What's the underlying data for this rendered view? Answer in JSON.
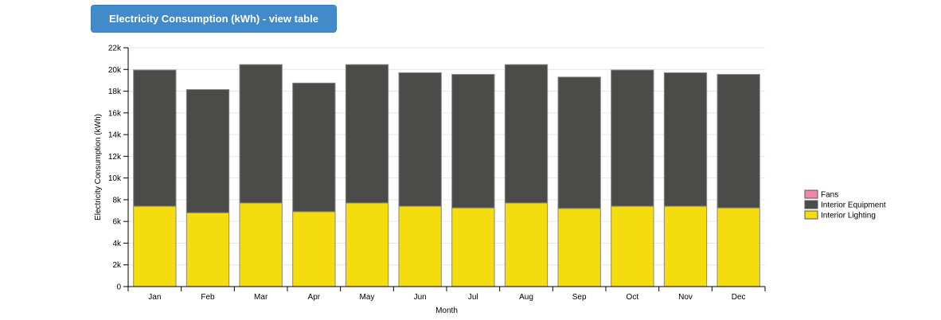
{
  "header": {
    "button_label": "Electricity Consumption (kWh) - view table"
  },
  "chart_data": {
    "type": "bar",
    "stacked": true,
    "title": "",
    "xlabel": "Month",
    "ylabel": "Electricity Consumption (kWh)",
    "ylim": [
      0,
      22000
    ],
    "yticks": [
      0,
      2000,
      4000,
      6000,
      8000,
      10000,
      12000,
      14000,
      16000,
      18000,
      20000,
      22000
    ],
    "ytick_labels": [
      "0",
      "2k",
      "4k",
      "6k",
      "8k",
      "10k",
      "12k",
      "14k",
      "16k",
      "18k",
      "20k",
      "22k"
    ],
    "grid": true,
    "legend_position": "right",
    "categories": [
      "Jan",
      "Feb",
      "Mar",
      "Apr",
      "May",
      "Jun",
      "Jul",
      "Aug",
      "Sep",
      "Oct",
      "Nov",
      "Dec"
    ],
    "series": [
      {
        "name": "Interior Lighting",
        "color": "#f5dc0f",
        "values": [
          7400,
          6800,
          7700,
          6900,
          7700,
          7400,
          7250,
          7700,
          7200,
          7400,
          7400,
          7250
        ]
      },
      {
        "name": "Interior Equipment",
        "color": "#4b4b49",
        "values": [
          12550,
          11350,
          12750,
          11850,
          12750,
          12300,
          12300,
          12750,
          12100,
          12550,
          12300,
          12300
        ]
      },
      {
        "name": "Fans",
        "color": "#f285ab",
        "values": [
          0,
          0,
          0,
          0,
          0,
          0,
          0,
          0,
          0,
          0,
          0,
          0
        ]
      }
    ],
    "legend_order": [
      "Fans",
      "Interior Equipment",
      "Interior Lighting"
    ]
  }
}
